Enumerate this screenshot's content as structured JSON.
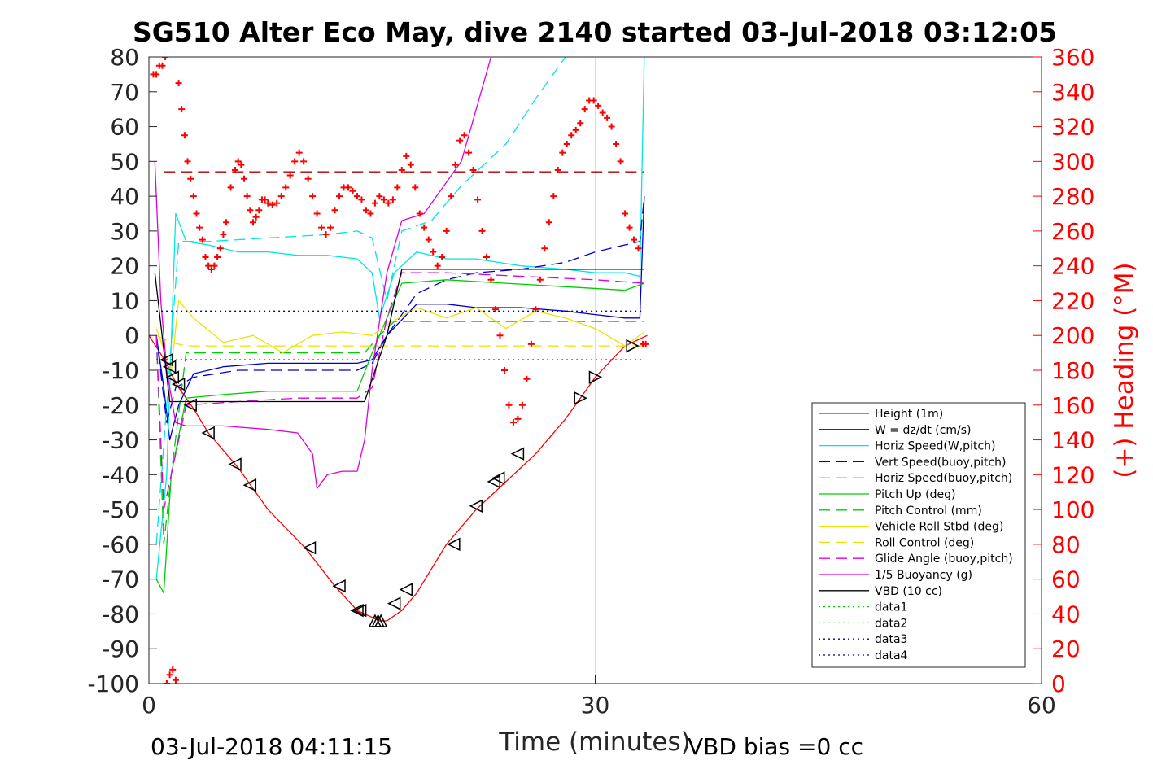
{
  "chart_data": {
    "type": "line",
    "title": "SG510 Alter Eco May, dive 2140 started 03-Jul-2018 03:12:05",
    "xlabel": "Time (minutes)",
    "ylabel_right": "(+) Heading (°M)",
    "xlim": [
      0,
      60
    ],
    "ylim": [
      -100,
      80
    ],
    "ylim_right": [
      0,
      360
    ],
    "x_ticks": [
      "0",
      "30",
      "60"
    ],
    "y_ticks": [
      "80",
      "70",
      "60",
      "50",
      "40",
      "30",
      "20",
      "10",
      "0",
      "-10",
      "-20",
      "-30",
      "-40",
      "-50",
      "-60",
      "-70",
      "-80",
      "-90",
      "-100"
    ],
    "y_ticks_right": [
      "360",
      "340",
      "320",
      "300",
      "280",
      "260",
      "240",
      "220",
      "200",
      "180",
      "160",
      "140",
      "120",
      "100",
      "80",
      "60",
      "40",
      "20",
      "0"
    ],
    "grid": "x only",
    "legend_position": "bottom-right",
    "footer_left": "03-Jul-2018 04:11:15",
    "footer_right": "VBD bias =0 cc",
    "colors": {
      "red": "#ff0000",
      "blue": "#0000cc",
      "cyan": "#00e5e5",
      "green": "#00cc00",
      "yellow": "#e6e600",
      "magenta": "#dd00dd",
      "black": "#000000",
      "navy": "#00008b"
    },
    "series": [
      {
        "name": "Height (1m)",
        "color": "#ff0000",
        "dash": "solid",
        "marker": "triangle",
        "x": [
          0,
          1.2,
          1.5,
          2.0,
          3.0,
          4.0,
          6.0,
          8.0,
          10.5,
          12.5,
          14.0,
          15.0,
          15.5,
          16.0,
          17.0,
          18.0,
          20.0,
          22.0,
          24.0,
          26.0,
          28.0,
          30.0,
          32.0,
          33.5
        ],
        "y": [
          0,
          -8,
          -11,
          -15,
          -21,
          -28,
          -38,
          -50,
          -61,
          -72,
          -79,
          -81,
          -82,
          -82,
          -79,
          -74,
          -60,
          -50,
          -42,
          -34,
          -24,
          -12,
          -3,
          0
        ]
      },
      {
        "name": "W = dz/dt (cm/s)",
        "color": "#0000cc",
        "dash": "solid",
        "x": [
          0.5,
          1.0,
          1.4,
          2.0,
          3.0,
          5.0,
          8.0,
          10.0,
          12.0,
          14.0,
          15.0,
          16.0,
          18.0,
          20.0,
          22.0,
          25.0,
          28.0,
          30.0,
          32.0,
          33.0,
          33.3
        ],
        "y": [
          0,
          -15,
          -30,
          -20,
          -11,
          -9,
          -8,
          -8,
          -8,
          -8,
          -7,
          0,
          9,
          9,
          8,
          8,
          7,
          6,
          5,
          5,
          40
        ]
      },
      {
        "name": "Horiz Speed(W,pitch)",
        "color": "#00e5e5",
        "dash": "solid",
        "x": [
          0.5,
          1.2,
          1.8,
          2.5,
          4.0,
          6.0,
          8.0,
          10.0,
          12.0,
          14.0,
          15.0,
          15.5,
          16.5,
          18.0,
          20.0,
          22.0,
          25.0,
          28.0,
          30.0,
          32.0,
          33.0,
          33.3
        ],
        "y": [
          -70,
          -40,
          35,
          27,
          26,
          24,
          24,
          23,
          23,
          22,
          18,
          5,
          18,
          24,
          22,
          22,
          20,
          19,
          18,
          18,
          17,
          80
        ]
      },
      {
        "name": "Vert Speed(buoy,pitch)",
        "color": "#0000cc",
        "dash": "dash",
        "x": [
          0.5,
          1.2,
          1.8,
          3.0,
          6.0,
          10.0,
          14.0,
          15.0,
          16.0,
          18.0,
          20.0,
          22.0,
          25.0,
          28.0,
          30.0,
          32.0,
          33.0,
          33.3
        ],
        "y": [
          0,
          -25,
          -15,
          -12,
          -10,
          -10,
          -10,
          -8,
          0,
          12,
          16,
          18,
          19,
          21,
          24,
          26,
          27,
          40
        ]
      },
      {
        "name": "Horiz Speed(buoy,pitch)",
        "color": "#00e5e5",
        "dash": "dash",
        "x": [
          0.5,
          1.2,
          2.0,
          4.0,
          8.0,
          12.0,
          14.0,
          15.0,
          16.0,
          17.0,
          19.0,
          21.0,
          24.0,
          26.0,
          28.0
        ],
        "y": [
          -60,
          -20,
          27,
          27,
          28,
          29,
          30,
          28,
          10,
          30,
          33,
          43,
          55,
          68,
          80
        ]
      },
      {
        "name": "Pitch Up (deg)",
        "color": "#00cc00",
        "dash": "solid",
        "x": [
          0.5,
          1.0,
          1.5,
          2.5,
          5.0,
          8.0,
          11.0,
          14.0,
          15.0,
          16.0,
          17.0,
          20.0,
          24.0,
          28.0,
          32.0,
          33.3
        ],
        "y": [
          -70,
          -74,
          -40,
          -18,
          -17,
          -16,
          -16,
          -16,
          -5,
          5,
          15,
          16,
          15,
          14,
          13,
          15
        ]
      },
      {
        "name": "Pitch Control (mm)",
        "color": "#00cc00",
        "dash": "dash",
        "x": [
          0.5,
          1.0,
          1.5,
          2.5,
          14.5,
          15.5,
          16.5,
          33.3
        ],
        "y": [
          0,
          -60,
          -40,
          -5,
          -5,
          0,
          4,
          4
        ]
      },
      {
        "name": "Vehicle Roll Stbd (deg)",
        "color": "#e6e600",
        "dash": "solid",
        "x": [
          0.5,
          1.5,
          2.0,
          3.0,
          5.0,
          7.0,
          9.0,
          11.0,
          13.0,
          15.0,
          16.0,
          18.0,
          20.0,
          22.0,
          24.0,
          26.0,
          28.0,
          30.0,
          32.0,
          33.3
        ],
        "y": [
          2,
          -10,
          10,
          5,
          -2,
          0,
          -5,
          0,
          1,
          0,
          3,
          8,
          5,
          8,
          2,
          7,
          5,
          2,
          -3,
          1
        ]
      },
      {
        "name": "Roll Control (deg)",
        "color": "#e6e600",
        "dash": "dash",
        "x": [
          0.5,
          1.5,
          2.5,
          33.3
        ],
        "y": [
          0,
          -2,
          -3,
          -3
        ]
      },
      {
        "name": "Glide Angle (buoy,pitch)",
        "color": "#dd00dd",
        "dash": "dash",
        "x": [
          0.5,
          1.0,
          1.5,
          2.5,
          6.0,
          10.0,
          14.0,
          15.0,
          16.0,
          17.0,
          20.0,
          25.0,
          30.0,
          33.3
        ],
        "y": [
          0,
          -50,
          -40,
          -20,
          -19,
          -18,
          -18,
          -15,
          5,
          18,
          18,
          17,
          16,
          15
        ]
      },
      {
        "name": "1/5 Buoyancy (g)",
        "color": "#dd00dd",
        "dash": "solid",
        "x": [
          0.4,
          0.8,
          1.2,
          1.8,
          2.5,
          5.0,
          8.0,
          10.0,
          11.0,
          11.3,
          12.0,
          13.0,
          14.0,
          14.5,
          15.0,
          16.0,
          17.0,
          18.5,
          21.0,
          23.0
        ],
        "y": [
          50,
          10,
          -10,
          -25,
          -26,
          -26,
          -27,
          -28,
          -34,
          -44,
          -40,
          -39,
          -39,
          -30,
          -10,
          18,
          33,
          35,
          50,
          80
        ]
      },
      {
        "name": "VBD (10 cc)",
        "color": "#000000",
        "dash": "solid",
        "x": [
          0.4,
          1.4,
          14.5,
          16.0,
          17.0,
          33.3
        ],
        "y": [
          18,
          -19,
          -19,
          0,
          19,
          19
        ]
      },
      {
        "name": "data1",
        "color": "#00cc00",
        "dash": "dot",
        "x": [],
        "y": []
      },
      {
        "name": "data2",
        "color": "#00cc00",
        "dash": "dot",
        "x": [],
        "y": []
      },
      {
        "name": "data3",
        "color": "#00008b",
        "dash": "dot",
        "x": [
          0.5,
          33.3
        ],
        "y": [
          7,
          7
        ]
      },
      {
        "name": "data4",
        "color": "#00008b",
        "dash": "dot",
        "x": [
          0.5,
          33.3
        ],
        "y": [
          -7,
          -7
        ]
      }
    ],
    "reference_line": {
      "color": "#aa0000",
      "dash": "dash",
      "y": 47,
      "x": [
        1.0,
        33.3
      ]
    },
    "heading_series": {
      "axis": "right",
      "marker": "plus",
      "color": "#ff0000",
      "x": [
        0.3,
        0.5,
        0.7,
        0.9,
        1.1,
        1.2,
        1.4,
        1.6,
        1.8,
        2.0,
        2.2,
        2.4,
        2.6,
        2.8,
        3.0,
        3.2,
        3.4,
        3.6,
        3.8,
        4.0,
        4.2,
        4.4,
        4.6,
        4.8,
        5.0,
        5.2,
        5.5,
        5.8,
        6.0,
        6.2,
        6.4,
        6.6,
        6.8,
        7.0,
        7.2,
        7.4,
        7.6,
        7.8,
        8.0,
        8.3,
        8.6,
        8.9,
        9.2,
        9.5,
        9.8,
        10.1,
        10.4,
        10.7,
        11.0,
        11.3,
        11.6,
        11.9,
        12.2,
        12.5,
        12.8,
        13.1,
        13.4,
        13.7,
        14.0,
        14.3,
        14.6,
        14.9,
        15.2,
        15.5,
        15.8,
        16.1,
        16.4,
        16.7,
        17.0,
        17.3,
        17.6,
        17.9,
        18.2,
        18.5,
        18.8,
        19.1,
        19.4,
        19.7,
        20.0,
        20.3,
        20.6,
        20.9,
        21.2,
        21.5,
        21.8,
        22.1,
        22.4,
        22.7,
        23.0,
        23.3,
        23.6,
        23.9,
        24.2,
        24.5,
        24.8,
        25.1,
        25.4,
        25.7,
        26.0,
        26.3,
        26.6,
        26.9,
        27.2,
        27.5,
        27.8,
        28.1,
        28.4,
        28.7,
        29.0,
        29.3,
        29.6,
        29.9,
        30.2,
        30.5,
        30.8,
        31.1,
        31.4,
        31.7,
        32.0,
        32.3,
        32.6,
        32.9,
        33.2,
        33.4
      ],
      "y": [
        350,
        350,
        355,
        355,
        360,
        0,
        5,
        8,
        2,
        345,
        330,
        315,
        300,
        290,
        280,
        270,
        262,
        255,
        245,
        240,
        238,
        240,
        245,
        250,
        258,
        265,
        285,
        295,
        300,
        298,
        290,
        280,
        272,
        265,
        268,
        272,
        278,
        278,
        276,
        275,
        276,
        280,
        285,
        292,
        300,
        305,
        300,
        290,
        280,
        270,
        262,
        258,
        262,
        272,
        280,
        285,
        285,
        283,
        280,
        278,
        272,
        270,
        276,
        280,
        278,
        276,
        278,
        285,
        295,
        303,
        298,
        285,
        270,
        262,
        255,
        248,
        240,
        245,
        260,
        280,
        298,
        312,
        315,
        305,
        295,
        278,
        260,
        245,
        232,
        215,
        200,
        180,
        160,
        150,
        152,
        160,
        175,
        195,
        215,
        232,
        250,
        265,
        280,
        295,
        305,
        310,
        315,
        318,
        322,
        330,
        335,
        335,
        332,
        328,
        325,
        320,
        310,
        300,
        270,
        262,
        255,
        250,
        195,
        195
      ]
    },
    "triangle_markers": {
      "x": [
        1.2,
        1.4,
        1.6,
        2.0,
        2.8,
        4.0,
        5.8,
        6.8,
        10.8,
        12.8,
        14.0,
        14.2,
        15.2,
        15.4,
        15.6,
        16.5,
        17.3,
        20.5,
        22.0,
        23.2,
        23.5,
        24.8,
        29.0,
        30.0,
        32.5
      ],
      "y": [
        -7,
        -9,
        -12,
        -14,
        -20,
        -28,
        -37,
        -43,
        -61,
        -72,
        -79,
        -79,
        -82,
        -82,
        -82,
        -77,
        -73,
        -60,
        -49,
        -42,
        -41,
        -34,
        -18,
        -12,
        -3
      ],
      "direction": [
        "left",
        "left",
        "left",
        "left",
        "left",
        "left",
        "left",
        "left",
        "left",
        "left",
        "left",
        "left",
        "up",
        "up",
        "up",
        "left",
        "left",
        "left",
        "left",
        "left",
        "left",
        "left",
        "right",
        "right",
        "right"
      ]
    }
  }
}
